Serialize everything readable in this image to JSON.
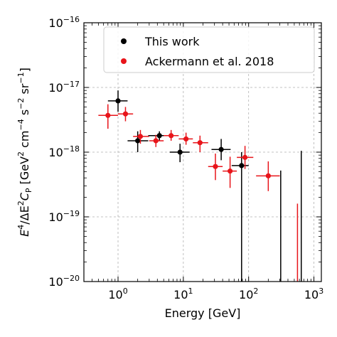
{
  "chart_data": {
    "type": "scatter",
    "title": "",
    "xlabel": "Energy [GeV]",
    "ylabel_parts": [
      "E",
      "4",
      "/ΔE",
      "2",
      "C",
      "P",
      " [GeV",
      "2",
      " cm",
      "−4",
      " s",
      "−2",
      " sr",
      "−1",
      "]"
    ],
    "x_scale": "log",
    "y_scale": "log",
    "xlim": [
      0.3,
      1300
    ],
    "ylim": [
      1e-20,
      1e-16
    ],
    "grid": true,
    "legend_position": "top-right",
    "x_ticks": [
      {
        "value": 1,
        "base": "10",
        "exp": "0"
      },
      {
        "value": 10,
        "base": "10",
        "exp": "1"
      },
      {
        "value": 100,
        "base": "10",
        "exp": "2"
      },
      {
        "value": 1000,
        "base": "10",
        "exp": "3"
      }
    ],
    "y_ticks": [
      {
        "value": 1e-20,
        "base": "10",
        "exp": "−20"
      },
      {
        "value": 1e-19,
        "base": "10",
        "exp": "−19"
      },
      {
        "value": 1e-18,
        "base": "10",
        "exp": "−18"
      },
      {
        "value": 1e-17,
        "base": "10",
        "exp": "−17"
      },
      {
        "value": 1e-16,
        "base": "10",
        "exp": "−16"
      }
    ],
    "series": [
      {
        "name": "This work",
        "color": "#000000",
        "points": [
          {
            "x": 1.0,
            "xlo": 0.7,
            "xhi": 1.4,
            "y": 6.2e-18,
            "ylo": 4.2e-18,
            "yhi": 9e-18
          },
          {
            "x": 2.0,
            "xlo": 1.4,
            "xhi": 2.9,
            "y": 1.5e-18,
            "ylo": 1e-18,
            "yhi": 2.1e-18
          },
          {
            "x": 4.3,
            "xlo": 2.9,
            "xhi": 6.2,
            "y": 1.8e-18,
            "ylo": 1.5e-18,
            "yhi": 2.1e-18
          },
          {
            "x": 8.9,
            "xlo": 6.2,
            "xhi": 12.5,
            "y": 1e-18,
            "ylo": 7e-19,
            "yhi": 1.35e-18
          },
          {
            "x": 38,
            "xlo": 27,
            "xhi": 53,
            "y": 1.1e-18,
            "ylo": 7.5e-19,
            "yhi": 1.6e-18
          },
          {
            "x": 78,
            "xlo": 55,
            "xhi": 100,
            "y": 6.2e-19,
            "ylo": 1e-20,
            "yhi": 1e-18
          },
          {
            "x": 310,
            "xlo": 310,
            "xhi": 310,
            "y": 5.2e-19,
            "ylo": 1e-20,
            "yhi": 5.2e-19
          },
          {
            "x": 640,
            "xlo": 640,
            "xhi": 640,
            "y": 1.05e-18,
            "ylo": 1e-20,
            "yhi": 1.05e-18
          }
        ]
      },
      {
        "name": "Ackermann et al. 2018",
        "color": "#e8141a",
        "points": [
          {
            "x": 0.7,
            "xlo": 0.5,
            "xhi": 1.0,
            "y": 3.7e-18,
            "ylo": 2.3e-18,
            "yhi": 5.5e-18
          },
          {
            "x": 1.3,
            "xlo": 1.0,
            "xhi": 1.7,
            "y": 3.9e-18,
            "ylo": 3e-18,
            "yhi": 5e-18
          },
          {
            "x": 2.2,
            "xlo": 1.7,
            "xhi": 3.0,
            "y": 1.75e-18,
            "ylo": 1.35e-18,
            "yhi": 2.2e-18
          },
          {
            "x": 3.8,
            "xlo": 3.0,
            "xhi": 5.0,
            "y": 1.5e-18,
            "ylo": 1.2e-18,
            "yhi": 1.85e-18
          },
          {
            "x": 6.5,
            "xlo": 5.0,
            "xhi": 8.5,
            "y": 1.8e-18,
            "ylo": 1.5e-18,
            "yhi": 2.2e-18
          },
          {
            "x": 11,
            "xlo": 8.5,
            "xhi": 14,
            "y": 1.6e-18,
            "ylo": 1.3e-18,
            "yhi": 2e-18
          },
          {
            "x": 18,
            "xlo": 14,
            "xhi": 24,
            "y": 1.4e-18,
            "ylo": 1e-18,
            "yhi": 1.8e-18
          },
          {
            "x": 31,
            "xlo": 24,
            "xhi": 40,
            "y": 6e-19,
            "ylo": 3.7e-19,
            "yhi": 9.5e-19
          },
          {
            "x": 52,
            "xlo": 40,
            "xhi": 66,
            "y": 5.1e-19,
            "ylo": 2.8e-19,
            "yhi": 8.5e-19
          },
          {
            "x": 88,
            "xlo": 66,
            "xhi": 118,
            "y": 8.3e-19,
            "ylo": 5.5e-19,
            "yhi": 1.25e-18
          },
          {
            "x": 200,
            "xlo": 130,
            "xhi": 300,
            "y": 4.3e-19,
            "ylo": 2.5e-19,
            "yhi": 7.2e-19
          },
          {
            "x": 560,
            "xlo": 560,
            "xhi": 560,
            "y": 1.6e-19,
            "ylo": 1e-20,
            "yhi": 1.6e-19
          }
        ]
      }
    ]
  }
}
